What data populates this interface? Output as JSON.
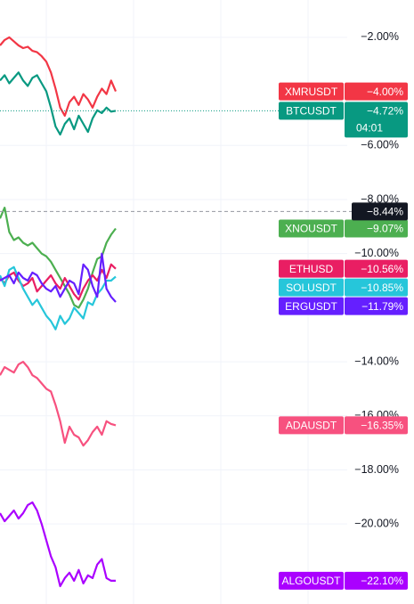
{
  "chart_data": {
    "type": "line",
    "ylim": [
      -22.96,
      -0.62
    ],
    "yticks": [
      {
        "value": -2,
        "label": "−2.00%"
      },
      {
        "value": -6,
        "label": "−6.00%"
      },
      {
        "value": -8,
        "label": "−8.00%"
      },
      {
        "value": -10,
        "label": "−10.00%"
      },
      {
        "value": -14,
        "label": "−14.00%"
      },
      {
        "value": -16,
        "label": "−16.00%"
      },
      {
        "value": -18,
        "label": "−18.00%"
      },
      {
        "value": -20,
        "label": "−20.00%"
      }
    ],
    "grid": true,
    "crosshair": {
      "value": -8.44,
      "label": "−8.44%"
    },
    "series": [
      {
        "name": "XMRUSDT",
        "color": "#f23645",
        "last_value": -4.0,
        "last_value_label": "−4.00%",
        "values": [
          -2.3,
          -2.1,
          -2.0,
          -2.15,
          -2.3,
          -2.4,
          -2.35,
          -2.5,
          -2.55,
          -2.7,
          -2.9,
          -3.3,
          -3.9,
          -4.6,
          -4.9,
          -4.4,
          -4.2,
          -4.5,
          -4.1,
          -4.3,
          -4.6,
          -4.2,
          -3.9,
          -4.1,
          -3.6,
          -4.0
        ]
      },
      {
        "name": "BTCUSDT",
        "color": "#089981",
        "last_value": -4.72,
        "last_value_label": "−4.72%",
        "countdown": "04:01",
        "values": [
          -3.6,
          -3.4,
          -3.7,
          -3.5,
          -3.3,
          -3.6,
          -3.8,
          -3.5,
          -3.4,
          -3.7,
          -4.0,
          -4.6,
          -5.3,
          -5.6,
          -5.2,
          -5.0,
          -5.4,
          -4.9,
          -5.2,
          -5.5,
          -5.0,
          -4.7,
          -4.8,
          -4.6,
          -4.75,
          -4.72
        ]
      },
      {
        "name": "XNOUSDT",
        "color": "#4caf50",
        "last_value": -9.07,
        "last_value_label": "−9.07%",
        "values": [
          -8.7,
          -8.3,
          -9.2,
          -9.5,
          -9.4,
          -9.6,
          -9.7,
          -9.6,
          -9.8,
          -10.0,
          -10.1,
          -10.3,
          -10.6,
          -10.9,
          -11.2,
          -11.5,
          -11.9,
          -12.0,
          -11.7,
          -11.3,
          -10.7,
          -10.2,
          -10.1,
          -9.6,
          -9.3,
          -9.07
        ]
      },
      {
        "name": "ETHUSD",
        "color": "#e91e63",
        "last_value": -10.56,
        "last_value_label": "−10.56%",
        "values": [
          -10.9,
          -11.1,
          -10.8,
          -10.7,
          -11.0,
          -11.2,
          -11.1,
          -10.9,
          -11.4,
          -11.2,
          -11.0,
          -10.8,
          -11.1,
          -11.3,
          -10.9,
          -11.2,
          -11.5,
          -11.7,
          -11.3,
          -11.0,
          -10.8,
          -11.0,
          -10.6,
          -10.9,
          -10.4,
          -10.56
        ]
      },
      {
        "name": "SOLUSDT",
        "color": "#26c6da",
        "last_value": -10.85,
        "last_value_label": "−10.85%",
        "values": [
          -10.8,
          -11.2,
          -10.6,
          -10.5,
          -10.9,
          -11.3,
          -11.6,
          -11.9,
          -11.7,
          -12.0,
          -12.3,
          -12.5,
          -12.8,
          -12.3,
          -12.6,
          -12.4,
          -12.0,
          -12.2,
          -12.4,
          -11.8,
          -11.9,
          -11.5,
          -11.3,
          -11.0,
          -11.0,
          -10.85
        ]
      },
      {
        "name": "ERGUSDT",
        "color": "#651fff",
        "last_value": -11.79,
        "last_value_label": "−11.79%",
        "values": [
          -11.0,
          -10.9,
          -10.8,
          -11.1,
          -10.7,
          -10.9,
          -11.0,
          -10.7,
          -10.8,
          -11.1,
          -11.3,
          -11.4,
          -11.2,
          -11.6,
          -11.3,
          -11.0,
          -11.1,
          -11.5,
          -10.4,
          -10.6,
          -11.2,
          -11.6,
          -10.0,
          -11.3,
          -11.6,
          -11.79
        ]
      },
      {
        "name": "ADAUSDT",
        "color": "#f7517f",
        "last_value": -16.35,
        "last_value_label": "−16.35%",
        "values": [
          -14.5,
          -14.2,
          -14.3,
          -14.4,
          -14.1,
          -14.0,
          -14.2,
          -14.5,
          -14.6,
          -14.8,
          -15.0,
          -15.1,
          -15.6,
          -16.2,
          -17.0,
          -16.4,
          -16.7,
          -16.8,
          -17.1,
          -16.9,
          -16.6,
          -16.4,
          -16.7,
          -16.2,
          -16.3,
          -16.35
        ]
      },
      {
        "name": "ALGOUSDT",
        "color": "#aa00ff",
        "last_value": -22.1,
        "last_value_label": "−22.10%",
        "values": [
          -19.6,
          -19.9,
          -19.7,
          -19.5,
          -19.8,
          -19.6,
          -19.3,
          -19.2,
          -19.5,
          -20.0,
          -20.6,
          -21.2,
          -21.6,
          -22.3,
          -22.0,
          -21.8,
          -22.1,
          -21.7,
          -22.2,
          -21.9,
          -22.0,
          -21.5,
          -21.3,
          -22.0,
          -22.1,
          -22.1
        ]
      }
    ]
  }
}
